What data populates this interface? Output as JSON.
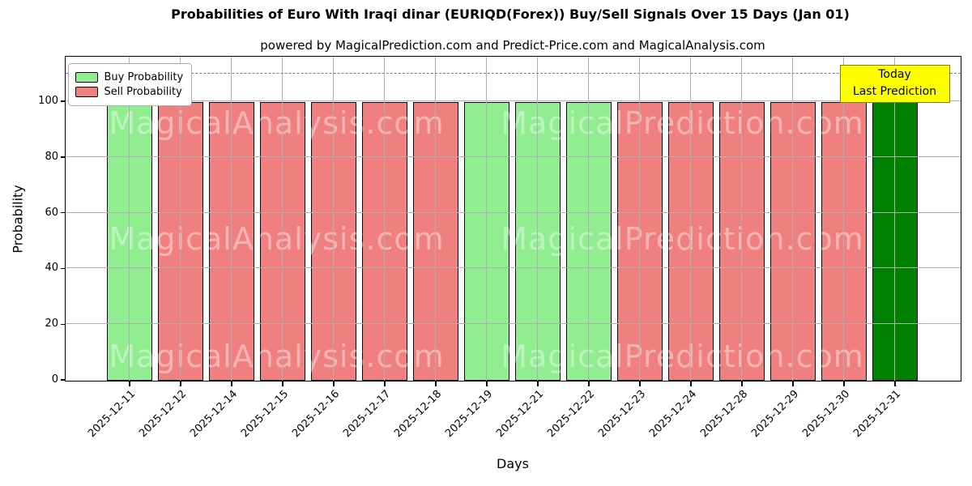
{
  "title": "Probabilities of Euro With Iraqi dinar (EURIQD(Forex)) Buy/Sell Signals Over 15 Days (Jan 01)",
  "subtitle": "powered by MagicalPrediction.com and Predict-Price.com and MagicalAnalysis.com",
  "legend": {
    "buy_label": "Buy Probability",
    "sell_label": "Sell Probability"
  },
  "annotation": {
    "line1": "Today",
    "line2": "Last Prediction"
  },
  "watermarks": {
    "left": "MagicalAnalysis.com",
    "right": "MagicalPrediction.com"
  },
  "colors": {
    "buy": "#90ee90",
    "sell": "#f08080",
    "today_buy": "#008000",
    "bar_edge": "#000000",
    "annotation_bg": "#ffff00",
    "annotation_border": "#7f7f00",
    "dashed_line": "#7a7a7a",
    "grid": "#b0b0b0",
    "watermark": "rgba(255,255,255,0.4)"
  },
  "chart_data": {
    "type": "bar",
    "title": "Probabilities of Euro With Iraqi dinar (EURIQD(Forex)) Buy/Sell Signals Over 15 Days (Jan 01)",
    "xlabel": "Days",
    "ylabel": "Probability",
    "ylim": [
      0,
      116
    ],
    "yticks": [
      0,
      20,
      40,
      60,
      80,
      100
    ],
    "dashed_line_y": 110,
    "grid": true,
    "legend_position": "upper left",
    "categories": [
      "2025-12-11",
      "2025-12-12",
      "2025-12-14",
      "2025-12-15",
      "2025-12-16",
      "2025-12-17",
      "2025-12-18",
      "2025-12-19",
      "2025-12-21",
      "2025-12-22",
      "2025-12-23",
      "2025-12-24",
      "2025-12-28",
      "2025-12-29",
      "2025-12-30",
      "2025-12-31"
    ],
    "values": [
      100,
      100,
      100,
      100,
      100,
      100,
      100,
      100,
      100,
      100,
      100,
      100,
      100,
      100,
      100,
      100
    ],
    "signals": [
      "buy",
      "sell",
      "sell",
      "sell",
      "sell",
      "sell",
      "sell",
      "buy",
      "buy",
      "buy",
      "sell",
      "sell",
      "sell",
      "sell",
      "sell",
      "today_buy"
    ],
    "series": [
      {
        "name": "Buy Probability",
        "values": [
          100,
          0,
          0,
          0,
          0,
          0,
          0,
          100,
          100,
          100,
          0,
          0,
          0,
          0,
          0,
          100
        ]
      },
      {
        "name": "Sell Probability",
        "values": [
          0,
          100,
          100,
          100,
          100,
          100,
          100,
          0,
          0,
          0,
          100,
          100,
          100,
          100,
          100,
          0
        ]
      }
    ]
  }
}
